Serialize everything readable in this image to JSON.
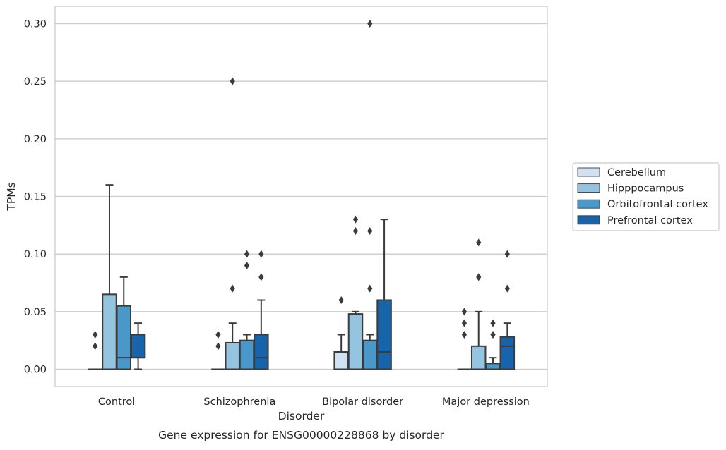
{
  "chart_data": {
    "type": "boxplot",
    "caption": "Gene expression for ENSG00000228868 by disorder",
    "xlabel": "Disorder",
    "ylabel": "TPMs",
    "ylim": [
      -0.015,
      0.315
    ],
    "yticks": [
      0.0,
      0.05,
      0.1,
      0.15,
      0.2,
      0.25,
      0.3
    ],
    "ytick_labels": [
      "0.00",
      "0.05",
      "0.10",
      "0.15",
      "0.20",
      "0.25",
      "0.30"
    ],
    "grid": "horizontal",
    "legend_position": "right",
    "categories": [
      "Control",
      "Schizophrenia",
      "Bipolar disorder",
      "Major depression"
    ],
    "series": [
      {
        "name": "Cerebellum",
        "color": "#d0e1f2",
        "boxes": [
          {
            "q1": 0.0,
            "median": 0.0,
            "q3": 0.0,
            "whislo": 0.0,
            "whishi": 0.0,
            "fliers": [
              0.02,
              0.03
            ]
          },
          {
            "q1": 0.0,
            "median": 0.0,
            "q3": 0.0,
            "whislo": 0.0,
            "whishi": 0.0,
            "fliers": [
              0.02,
              0.03
            ]
          },
          {
            "q1": 0.0,
            "median": 0.0,
            "q3": 0.015,
            "whislo": 0.0,
            "whishi": 0.03,
            "fliers": [
              0.06
            ]
          },
          {
            "q1": 0.0,
            "median": 0.0,
            "q3": 0.0,
            "whislo": 0.0,
            "whishi": 0.0,
            "fliers": [
              0.03,
              0.04,
              0.05
            ]
          }
        ]
      },
      {
        "name": "Hipppocampus",
        "color": "#94c4df",
        "boxes": [
          {
            "q1": 0.0,
            "median": 0.0,
            "q3": 0.065,
            "whislo": 0.0,
            "whishi": 0.16,
            "fliers": []
          },
          {
            "q1": 0.0,
            "median": 0.0,
            "q3": 0.023,
            "whislo": 0.0,
            "whishi": 0.04,
            "fliers": [
              0.07,
              0.25
            ]
          },
          {
            "q1": 0.0,
            "median": 0.0,
            "q3": 0.048,
            "whislo": 0.0,
            "whishi": 0.05,
            "fliers": [
              0.12,
              0.13
            ]
          },
          {
            "q1": 0.0,
            "median": 0.0,
            "q3": 0.02,
            "whislo": 0.0,
            "whishi": 0.05,
            "fliers": [
              0.08,
              0.11
            ]
          }
        ]
      },
      {
        "name": "Orbitofrontal cortex",
        "color": "#4a98c9",
        "boxes": [
          {
            "q1": 0.0,
            "median": 0.01,
            "q3": 0.055,
            "whislo": 0.0,
            "whishi": 0.08,
            "fliers": []
          },
          {
            "q1": 0.0,
            "median": 0.0,
            "q3": 0.025,
            "whislo": 0.0,
            "whishi": 0.03,
            "fliers": [
              0.09,
              0.1
            ]
          },
          {
            "q1": 0.0,
            "median": 0.0,
            "q3": 0.025,
            "whislo": 0.0,
            "whishi": 0.03,
            "fliers": [
              0.07,
              0.12,
              0.3
            ]
          },
          {
            "q1": 0.0,
            "median": 0.0,
            "q3": 0.005,
            "whislo": 0.0,
            "whishi": 0.01,
            "fliers": [
              0.03,
              0.04
            ]
          }
        ]
      },
      {
        "name": "Prefrontal cortex",
        "color": "#1764ab",
        "boxes": [
          {
            "q1": 0.01,
            "median": 0.01,
            "q3": 0.03,
            "whislo": 0.0,
            "whishi": 0.04,
            "fliers": []
          },
          {
            "q1": 0.0,
            "median": 0.01,
            "q3": 0.03,
            "whislo": 0.0,
            "whishi": 0.06,
            "fliers": [
              0.08,
              0.1
            ]
          },
          {
            "q1": 0.0,
            "median": 0.015,
            "q3": 0.06,
            "whislo": 0.0,
            "whishi": 0.13,
            "fliers": []
          },
          {
            "q1": 0.0,
            "median": 0.02,
            "q3": 0.028,
            "whislo": 0.0,
            "whishi": 0.04,
            "fliers": [
              0.07,
              0.1
            ]
          }
        ]
      }
    ]
  }
}
